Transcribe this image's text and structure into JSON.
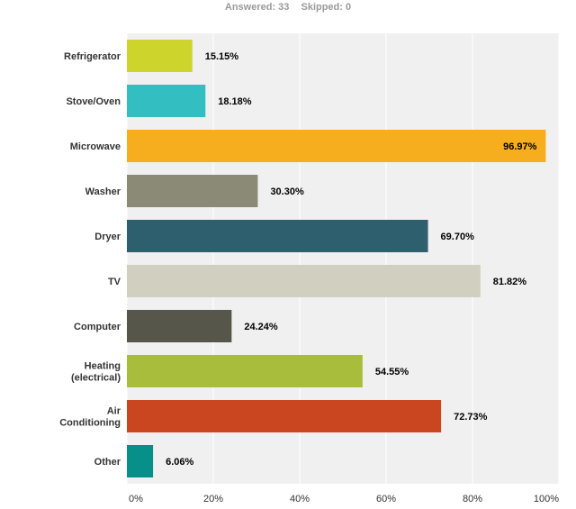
{
  "summary": {
    "answered": "Answered: 33",
    "skipped": "Skipped: 0"
  },
  "chart_data": {
    "type": "bar",
    "orientation": "horizontal",
    "categories": [
      "Refrigerator",
      "Stove/Oven",
      "Microwave",
      "Washer",
      "Dryer",
      "TV",
      "Computer",
      "Heating (electrical)",
      "Air Conditioning",
      "Other"
    ],
    "category_lines": [
      [
        "Refrigerator"
      ],
      [
        "Stove/Oven"
      ],
      [
        "Microwave"
      ],
      [
        "Washer"
      ],
      [
        "Dryer"
      ],
      [
        "TV"
      ],
      [
        "Computer"
      ],
      [
        "Heating",
        "(electrical)"
      ],
      [
        "Air",
        "Conditioning"
      ],
      [
        "Other"
      ]
    ],
    "values": [
      15.15,
      18.18,
      96.97,
      30.3,
      69.7,
      81.82,
      24.24,
      54.55,
      72.73,
      6.06
    ],
    "value_labels": [
      "15.15%",
      "18.18%",
      "96.97%",
      "30.30%",
      "69.70%",
      "81.82%",
      "24.24%",
      "54.55%",
      "72.73%",
      "6.06%"
    ],
    "colors": [
      "#cdd52c",
      "#33bfc1",
      "#f7ae1e",
      "#8a8a77",
      "#2e5f6e",
      "#d0cfc0",
      "#56574a",
      "#a8bd3b",
      "#c94620",
      "#079089"
    ],
    "xlim": [
      0,
      100
    ],
    "x_ticks": [
      "0%",
      "20%",
      "40%",
      "60%",
      "80%",
      "100%"
    ],
    "x_tick_values": [
      0,
      20,
      40,
      60,
      80,
      100
    ],
    "grid": true,
    "plot_background": "#f0f0f0",
    "grid_color": "#ffffff"
  }
}
